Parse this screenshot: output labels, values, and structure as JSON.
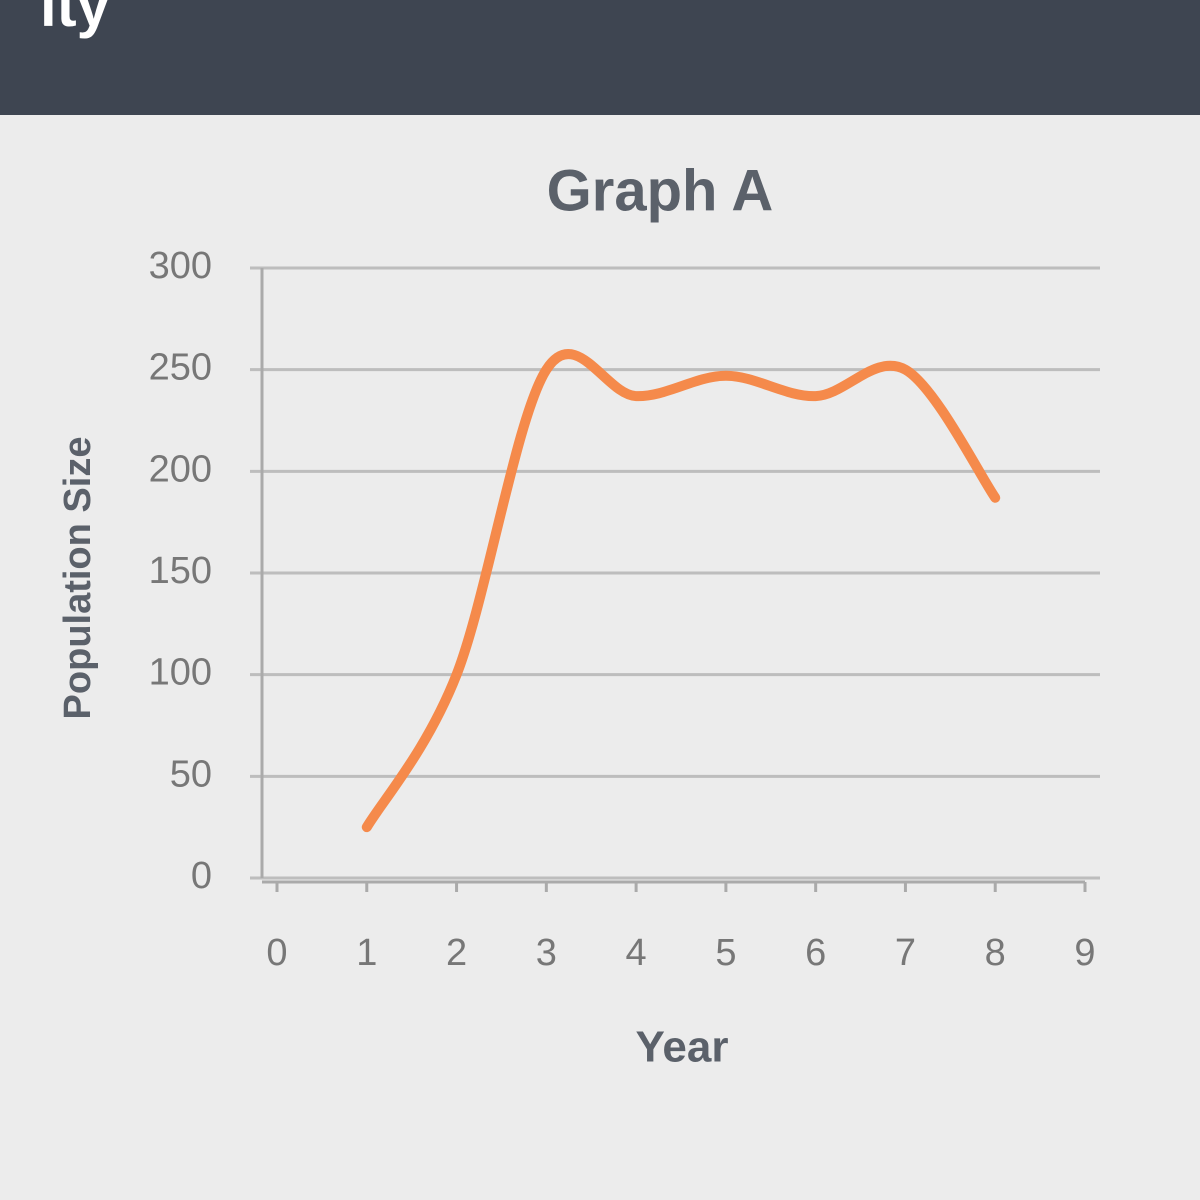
{
  "header": {
    "title": "ity"
  },
  "chart_data": {
    "type": "line",
    "title": "Graph A",
    "x_label": "Year",
    "y_label": "Population Size",
    "x": [
      1,
      2,
      3,
      4,
      5,
      6,
      7,
      8
    ],
    "series": [
      {
        "name": null,
        "color": "#f58a4b",
        "values": [
          25,
          100,
          250,
          237,
          247,
          237,
          250,
          187
        ]
      }
    ],
    "xlim": [
      0,
      9
    ],
    "xticks": [
      0,
      1,
      2,
      3,
      4,
      5,
      6,
      7,
      8,
      9
    ],
    "ylim": [
      0,
      300
    ],
    "yticks": [
      0,
      50,
      100,
      150,
      200,
      250,
      300
    ],
    "grid": true
  }
}
